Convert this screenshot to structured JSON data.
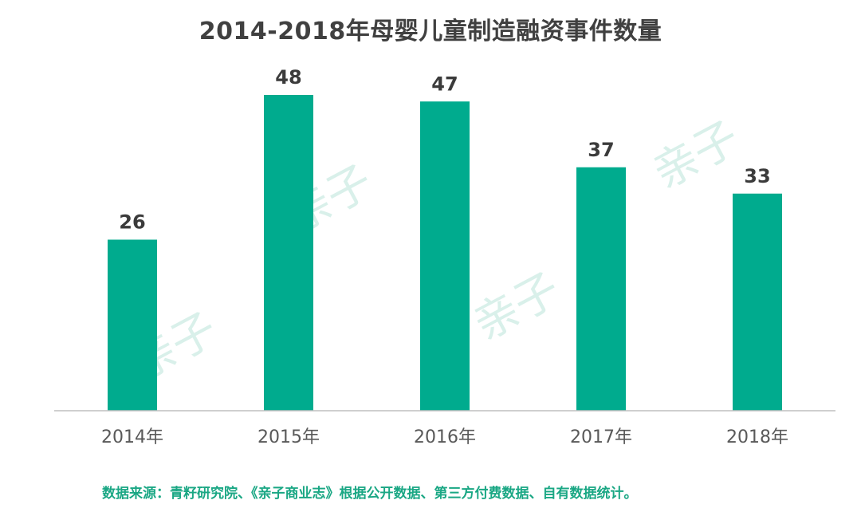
{
  "chart_data": {
    "type": "bar",
    "title": "2014-2018年母婴儿童制造融资事件数量",
    "categories": [
      "2014年",
      "2015年",
      "2016年",
      "2017年",
      "2018年"
    ],
    "values": [
      26,
      48,
      47,
      37,
      33
    ],
    "xlabel": "",
    "ylabel": "",
    "ylim": [
      0,
      48
    ],
    "grid": false,
    "legend": "none",
    "bar_color": "#00ab8e",
    "label_color": "#3b3b3b",
    "axis_color": "#bfbfbf"
  },
  "source": {
    "text": "数据来源：青籽研究院、《亲子商业志》根据公开数据、第三方付费数据、自有数据统计。",
    "color": "#1aa784"
  }
}
